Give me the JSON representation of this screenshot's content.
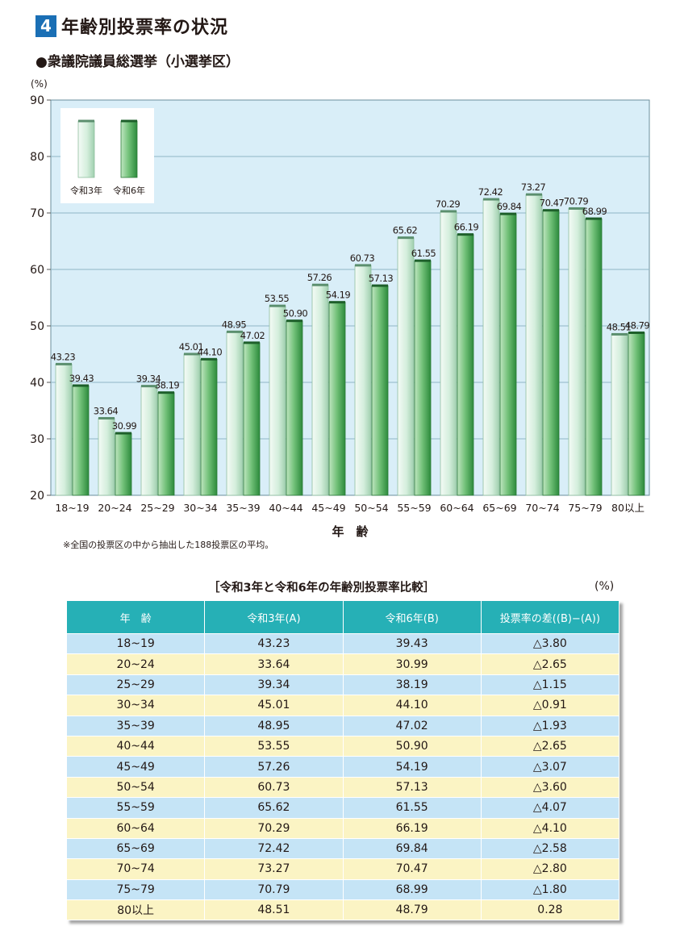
{
  "section": {
    "number": "4",
    "title": "年齢別投票率の状況"
  },
  "subtitle": "●衆議院議員総選挙（小選挙区）",
  "note": "※全国の投票区の中から抽出した188投票区の平均。",
  "colors": {
    "bar_r3_light": "#e8f5ec",
    "bar_r3_dark": "#a5d4b4",
    "bar_r6_light": "#9bd39f",
    "bar_r6_dark": "#2e8b3e",
    "plot_bg": "#d9eef8",
    "grid": "#8fb7c6",
    "table_header": "#26b0b6",
    "row_blue": "#c5e4f6",
    "row_yellow": "#fbf4c4"
  },
  "chart_data": {
    "type": "bar",
    "title": "",
    "ylabel": "(%)",
    "xlabel": "年　齢",
    "ylim": [
      20,
      90
    ],
    "yticks": [
      20,
      30,
      40,
      50,
      60,
      70,
      80,
      90
    ],
    "grid": true,
    "legend_position": "top-left",
    "categories": [
      "18~19",
      "20~24",
      "25~29",
      "30~34",
      "35~39",
      "40~44",
      "45~49",
      "50~54",
      "55~59",
      "60~64",
      "65~69",
      "70~74",
      "75~79",
      "80以上"
    ],
    "series": [
      {
        "name": "令和3年",
        "values": [
          43.23,
          33.64,
          39.34,
          45.01,
          48.95,
          53.55,
          57.26,
          60.73,
          65.62,
          70.29,
          72.42,
          73.27,
          70.79,
          48.51
        ],
        "labels": [
          "43.23",
          "33.64",
          "39.34",
          "45.01",
          "48.95",
          "53.55",
          "57.26",
          "60.73",
          "65.62",
          "70.29",
          "72.42",
          "73.27",
          "70.79",
          "48.51"
        ]
      },
      {
        "name": "令和6年",
        "values": [
          39.43,
          30.99,
          38.19,
          44.1,
          47.02,
          50.9,
          54.19,
          57.13,
          61.55,
          66.19,
          69.84,
          70.47,
          68.99,
          48.79
        ],
        "labels": [
          "39.43",
          "30.99",
          "38.19",
          "44.10",
          "47.02",
          "50.90",
          "54.19",
          "57.13",
          "61.55",
          "66.19",
          "69.84",
          "70.47",
          "68.99",
          "48.79"
        ]
      }
    ]
  },
  "table": {
    "caption": "［令和3年と令和6年の年齢別投票率比較］",
    "unit": "(%)",
    "headers": [
      "年　齢",
      "令和3年(A)",
      "令和6年(B)",
      "投票率の差((B)−(A))"
    ],
    "rows": [
      [
        "18~19",
        "43.23",
        "39.43",
        "△3.80"
      ],
      [
        "20~24",
        "33.64",
        "30.99",
        "△2.65"
      ],
      [
        "25~29",
        "39.34",
        "38.19",
        "△1.15"
      ],
      [
        "30~34",
        "45.01",
        "44.10",
        "△0.91"
      ],
      [
        "35~39",
        "48.95",
        "47.02",
        "△1.93"
      ],
      [
        "40~44",
        "53.55",
        "50.90",
        "△2.65"
      ],
      [
        "45~49",
        "57.26",
        "54.19",
        "△3.07"
      ],
      [
        "50~54",
        "60.73",
        "57.13",
        "△3.60"
      ],
      [
        "55~59",
        "65.62",
        "61.55",
        "△4.07"
      ],
      [
        "60~64",
        "70.29",
        "66.19",
        "△4.10"
      ],
      [
        "65~69",
        "72.42",
        "69.84",
        "△2.58"
      ],
      [
        "70~74",
        "73.27",
        "70.47",
        "△2.80"
      ],
      [
        "75~79",
        "70.79",
        "68.99",
        "△1.80"
      ],
      [
        "80以上",
        "48.51",
        "48.79",
        "0.28"
      ]
    ]
  }
}
